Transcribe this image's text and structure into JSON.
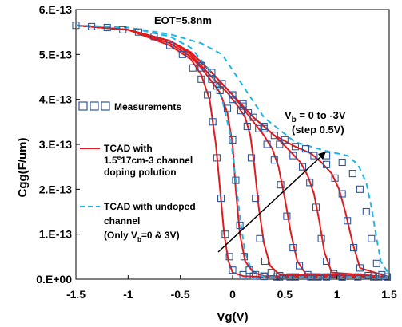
{
  "chart_data": {
    "type": "line",
    "xlabel": "Vg(V)",
    "ylabel": "Cgg(F/um)",
    "xlim": [
      -1.5,
      1.5
    ],
    "ylim": [
      0,
      6e-13
    ],
    "x_ticks": [
      {
        "value": -1.5,
        "label": "-1.5"
      },
      {
        "value": -1.0,
        "label": "-1"
      },
      {
        "value": -0.5,
        "label": "-0.5"
      },
      {
        "value": 0.0,
        "label": "0"
      },
      {
        "value": 0.5,
        "label": "0.5"
      },
      {
        "value": 1.0,
        "label": "1"
      },
      {
        "value": 1.5,
        "label": "1.5"
      }
    ],
    "y_ticks": [
      {
        "value": 0,
        "label": "0.E+00"
      },
      {
        "value": 1e-13,
        "label": "1.E-13"
      },
      {
        "value": 2e-13,
        "label": "2.E-13"
      },
      {
        "value": 3e-13,
        "label": "3.E-13"
      },
      {
        "value": 4e-13,
        "label": "4.E-13"
      },
      {
        "value": 5e-13,
        "label": "5.E-13"
      },
      {
        "value": 6e-13,
        "label": "6.E-13"
      }
    ],
    "annotations": {
      "eot": "EOT=5.8nm",
      "vb_main": "V",
      "vb_sub": "b",
      "vb_rest": " = 0 to -3V",
      "step": "(step 0.5V)"
    },
    "legend": {
      "placement": "left-middle",
      "measurements": "Measurements",
      "tcad_doped_line1": "TCAD with",
      "tcad_doped_line2_pre": "1.5",
      "tcad_doped_line2_sup": "e",
      "tcad_doped_line2_post": "17cm-3 channel",
      "tcad_doped_line3": "doping polution",
      "tcad_undoped_line1": "TCAD with undoped",
      "tcad_undoped_line2": "channel",
      "tcad_undoped_line3_pre": "(Only V",
      "tcad_undoped_line3_sub": "b",
      "tcad_undoped_line3_post": "=0 & 3V)"
    },
    "colors": {
      "tcad_doped": "#e31a1c",
      "tcad_undoped": "#1fb4e6",
      "measurements": "#2f5597"
    },
    "series": [
      {
        "name": "TCAD doped Vb=0V",
        "kind": "tcad_doped",
        "x": [
          -1.5,
          -1.0,
          -0.6,
          -0.4,
          -0.3,
          -0.22,
          -0.16,
          -0.12,
          -0.08,
          -0.04,
          0.0,
          0.1,
          0.3,
          1.5
        ],
        "y": [
          5.65e-13,
          5.55e-13,
          5.2e-13,
          4.9e-13,
          4.55e-13,
          4e-13,
          3e-13,
          2e-13,
          1e-13,
          4e-14,
          1.5e-14,
          7e-15,
          5e-15,
          5e-15
        ]
      },
      {
        "name": "TCAD doped Vb=-0.5V",
        "kind": "tcad_doped",
        "x": [
          -1.5,
          -1.0,
          -0.6,
          -0.4,
          -0.3,
          -0.2,
          -0.12,
          -0.05,
          0.0,
          0.03,
          0.07,
          0.12,
          0.2,
          0.3,
          1.5
        ],
        "y": [
          5.65e-13,
          5.55e-13,
          5.25e-13,
          4.95e-13,
          4.7e-13,
          4.4e-13,
          4.15e-13,
          3.7e-13,
          3e-13,
          2e-13,
          1e-13,
          4e-14,
          1.5e-14,
          7e-15,
          5e-15
        ]
      },
      {
        "name": "TCAD doped Vb=-1V",
        "kind": "tcad_doped",
        "x": [
          -1.5,
          -1.0,
          -0.6,
          -0.4,
          -0.2,
          -0.05,
          0.05,
          0.12,
          0.17,
          0.21,
          0.25,
          0.3,
          0.36,
          0.45,
          1.5
        ],
        "y": [
          5.65e-13,
          5.55e-13,
          5.3e-13,
          5e-13,
          4.5e-13,
          4.15e-13,
          3.85e-13,
          3.6e-13,
          3.2e-13,
          2.5e-13,
          1.6e-13,
          8e-14,
          3e-14,
          1e-14,
          5e-15
        ]
      },
      {
        "name": "TCAD doped Vb=-1.5V",
        "kind": "tcad_doped",
        "x": [
          -1.5,
          -1.0,
          -0.6,
          -0.4,
          -0.2,
          0.0,
          0.1,
          0.2,
          0.3,
          0.38,
          0.44,
          0.5,
          0.56,
          0.62,
          0.7,
          1.5
        ],
        "y": [
          5.65e-13,
          5.55e-13,
          5.3e-13,
          5.05e-13,
          4.6e-13,
          4.1e-13,
          3.8e-13,
          3.5e-13,
          3.2e-13,
          2.9e-13,
          2.5e-13,
          1.8e-13,
          1e-13,
          4e-14,
          1.2e-14,
          5e-15
        ]
      },
      {
        "name": "TCAD doped Vb=-2V",
        "kind": "tcad_doped",
        "x": [
          -1.5,
          -1.0,
          -0.6,
          -0.4,
          -0.2,
          0.0,
          0.2,
          0.4,
          0.55,
          0.65,
          0.72,
          0.78,
          0.83,
          0.88,
          0.95,
          1.5
        ],
        "y": [
          5.65e-13,
          5.55e-13,
          5.3e-13,
          5.05e-13,
          4.6e-13,
          4.1e-13,
          3.6e-13,
          3.2e-13,
          2.85e-13,
          2.6e-13,
          2.3e-13,
          1.9e-13,
          1.3e-13,
          6e-14,
          1.5e-14,
          5e-15
        ]
      },
      {
        "name": "TCAD doped Vb=-2.5V",
        "kind": "tcad_doped",
        "x": [
          -1.5,
          -1.0,
          -0.6,
          -0.4,
          -0.2,
          0.0,
          0.2,
          0.4,
          0.6,
          0.75,
          0.85,
          0.95,
          1.02,
          1.08,
          1.15,
          1.22,
          1.5
        ],
        "y": [
          5.65e-13,
          5.55e-13,
          5.3e-13,
          5.05e-13,
          4.6e-13,
          4.1e-13,
          3.6e-13,
          3.2e-13,
          2.95e-13,
          2.8e-13,
          2.6e-13,
          2.35e-13,
          2e-13,
          1.5e-13,
          8e-14,
          2.5e-14,
          5e-15
        ]
      },
      {
        "name": "TCAD undoped Vb=0V",
        "kind": "tcad_undoped",
        "x": [
          -1.5,
          -1.0,
          -0.6,
          -0.4,
          -0.2,
          -0.1,
          -0.02,
          0.03,
          0.08,
          0.12,
          0.18,
          0.3,
          1.5
        ],
        "y": [
          5.65e-13,
          5.6e-13,
          5.4e-13,
          5.15e-13,
          4.6e-13,
          4e-13,
          3.2e-13,
          2.2e-13,
          1.2e-13,
          6e-14,
          2e-14,
          5e-15,
          5e-15
        ]
      },
      {
        "name": "TCAD undoped Vb=-3V",
        "kind": "tcad_undoped",
        "x": [
          -1.5,
          -1.0,
          -0.6,
          -0.3,
          -0.1,
          0.1,
          0.3,
          0.6,
          0.9,
          1.1,
          1.2,
          1.28,
          1.33,
          1.38,
          1.42,
          1.5
        ],
        "y": [
          5.65e-13,
          5.6e-13,
          5.45e-13,
          5.25e-13,
          5e-13,
          4.3e-13,
          3.6e-13,
          3.05e-13,
          2.85e-13,
          2.75e-13,
          2.55e-13,
          2.15e-13,
          1.6e-13,
          9e-14,
          4e-14,
          1e-14
        ]
      }
    ],
    "measurements": [
      {
        "x": [
          -1.5,
          -1.35,
          -1.2,
          -1.05,
          -0.9,
          -0.75,
          -0.6,
          -0.48,
          -0.38,
          -0.3,
          -0.24,
          -0.19,
          -0.15,
          -0.11,
          -0.07,
          -0.03,
          0.0,
          0.1,
          0.2,
          0.3,
          0.45,
          0.6,
          0.75,
          0.9,
          1.05,
          1.2,
          1.35,
          1.48
        ],
        "y": [
          5.65e-13,
          5.62e-13,
          5.6e-13,
          5.55e-13,
          5.5e-13,
          5.4e-13,
          5.2e-13,
          5e-13,
          4.7e-13,
          4.45e-13,
          4.1e-13,
          3.5e-13,
          2.7e-13,
          1.8e-13,
          1e-13,
          5e-14,
          2e-14,
          1e-14,
          7e-15,
          6e-15,
          5e-15,
          5e-15,
          5e-15,
          5e-15,
          5e-15,
          5e-15,
          5e-15,
          5e-15
        ]
      },
      {
        "x": [
          -0.3,
          -0.2,
          -0.12,
          -0.05,
          0.0,
          0.03,
          0.07,
          0.11,
          0.16,
          0.22,
          0.3,
          0.42
        ],
        "y": [
          4.75e-13,
          4.45e-13,
          4.2e-13,
          3.8e-13,
          3.1e-13,
          2.2e-13,
          1.2e-13,
          5e-14,
          2e-14,
          1e-14,
          7e-15,
          5e-15
        ]
      },
      {
        "x": [
          -0.3,
          -0.15,
          0.0,
          0.08,
          0.14,
          0.18,
          0.22,
          0.26,
          0.31,
          0.37,
          0.45,
          0.55
        ],
        "y": [
          4.7e-13,
          4.3e-13,
          4e-13,
          3.75e-13,
          3.4e-13,
          2.7e-13,
          1.8e-13,
          9e-14,
          4e-14,
          1.5e-14,
          8e-15,
          5e-15
        ]
      },
      {
        "x": [
          -0.2,
          0.0,
          0.15,
          0.25,
          0.33,
          0.4,
          0.46,
          0.52,
          0.58,
          0.64,
          0.72,
          0.82
        ],
        "y": [
          4.6e-13,
          4.1e-13,
          3.7e-13,
          3.35e-13,
          3e-13,
          2.65e-13,
          2.1e-13,
          1.4e-13,
          7e-14,
          3e-14,
          1e-14,
          5e-15
        ]
      },
      {
        "x": [
          -0.1,
          0.1,
          0.3,
          0.45,
          0.58,
          0.67,
          0.74,
          0.8,
          0.85,
          0.9,
          0.97,
          1.05
        ],
        "y": [
          4.35e-13,
          3.85e-13,
          3.35e-13,
          3e-13,
          2.75e-13,
          2.5e-13,
          2.15e-13,
          1.6e-13,
          9e-14,
          4e-14,
          1.2e-14,
          5e-15
        ]
      },
      {
        "x": [
          0.0,
          0.2,
          0.4,
          0.6,
          0.78,
          0.9,
          0.98,
          1.05,
          1.1,
          1.16,
          1.22,
          1.3,
          1.4
        ],
        "y": [
          4.1e-13,
          3.6e-13,
          3.2e-13,
          2.95e-13,
          2.75e-13,
          2.55e-13,
          2.25e-13,
          1.9e-13,
          1.3e-13,
          7e-14,
          2.5e-14,
          8e-15,
          5e-15
        ]
      },
      {
        "x": [
          0.1,
          0.3,
          0.5,
          0.7,
          0.9,
          1.05,
          1.15,
          1.22,
          1.28,
          1.33,
          1.38,
          1.43,
          1.48
        ],
        "y": [
          3.9e-13,
          3.4e-13,
          3.1e-13,
          2.9e-13,
          2.75e-13,
          2.6e-13,
          2.35e-13,
          2e-13,
          1.5e-13,
          9e-14,
          3.5e-14,
          1e-14,
          5e-15
        ]
      }
    ]
  }
}
